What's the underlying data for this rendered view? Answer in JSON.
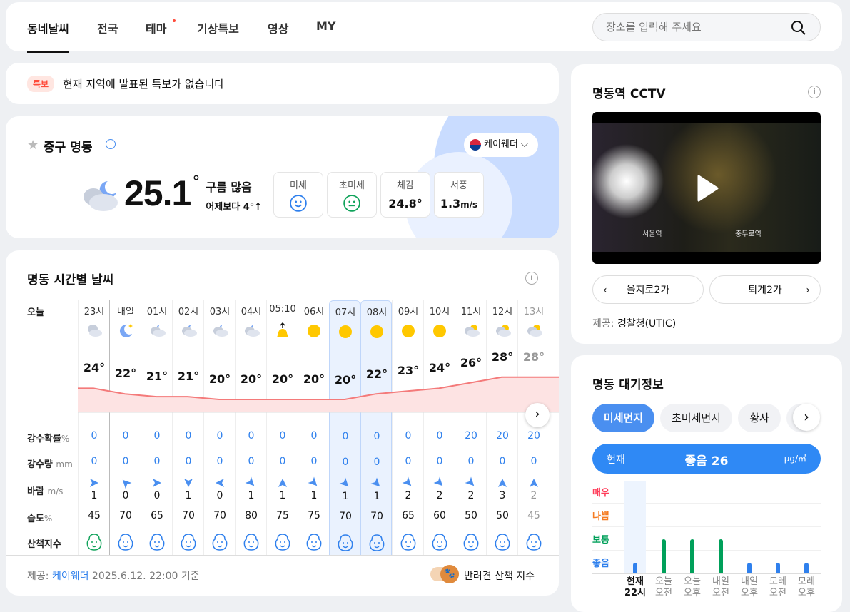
{
  "nav": {
    "tabs": [
      {
        "label": "동네날씨",
        "active": true
      },
      {
        "label": "전국"
      },
      {
        "label": "테마",
        "dot": true
      },
      {
        "label": "기상특보"
      },
      {
        "label": "영상"
      },
      {
        "label": "MY"
      }
    ],
    "search_placeholder": "장소를 입력해 주세요"
  },
  "alert": {
    "badge": "특보",
    "text": "현재 지역에 발표된 특보가 없습니다"
  },
  "current": {
    "location": "중구 명동",
    "provider": "케이웨더",
    "temp": "25.1",
    "unit": "°",
    "condition": "구름 많음",
    "compare": "어제보다 4°↑",
    "stats": [
      {
        "label": "미세",
        "icon": "smile-icon",
        "color": "#2f80ed"
      },
      {
        "label": "초미세",
        "icon": "neutral-face-icon",
        "color": "#11a35b"
      },
      {
        "label": "체감",
        "value": "24.8°"
      },
      {
        "label": "서풍",
        "value": "1.3",
        "unit": "m/s"
      }
    ]
  },
  "hourly": {
    "title": "명동 시간별 날씨",
    "day_label": "오늘",
    "row_labels": {
      "pop": "강수확률",
      "pop_unit": "%",
      "rain": "강수량",
      "rain_unit": "mm",
      "wind": "바람",
      "wind_unit": "m/s",
      "hum": "습도",
      "hum_unit": "%",
      "walk": "산책지수"
    },
    "hours": [
      "23시",
      "내일",
      "01시",
      "02시",
      "03시",
      "04시",
      "05:10",
      "06시",
      "07시",
      "08시",
      "09시",
      "10시",
      "11시",
      "12시",
      "13시"
    ],
    "icons": [
      "cloudy",
      "moon",
      "cloud-moon",
      "cloud-moon",
      "cloud-moon",
      "cloud-moon",
      "sunrise",
      "sun",
      "sun",
      "sun",
      "sun",
      "sun",
      "cloud-sun",
      "cloud-sun",
      "cloud-sun"
    ],
    "temps": [
      24,
      22,
      21,
      21,
      20,
      20,
      20,
      20,
      20,
      22,
      23,
      24,
      26,
      28,
      28
    ],
    "pop": [
      0,
      0,
      0,
      0,
      0,
      0,
      0,
      0,
      0,
      0,
      0,
      0,
      20,
      20,
      20
    ],
    "rain": [
      0,
      0,
      0,
      0,
      0,
      0,
      0,
      0,
      0,
      0,
      0,
      0,
      0,
      0,
      0
    ],
    "wind_dir_deg": [
      0,
      -135,
      0,
      90,
      180,
      45,
      -90,
      45,
      45,
      45,
      45,
      45,
      45,
      -90,
      -90
    ],
    "wind_speed": [
      1,
      0,
      0,
      1,
      0,
      1,
      1,
      1,
      1,
      1,
      2,
      2,
      2,
      3,
      2
    ],
    "humidity": [
      45,
      70,
      65,
      70,
      70,
      80,
      75,
      75,
      70,
      70,
      65,
      60,
      50,
      50,
      45
    ],
    "walk": [
      "good",
      "normal",
      "normal",
      "normal",
      "normal",
      "normal",
      "normal",
      "normal",
      "normal",
      "normal",
      "normal",
      "normal",
      "normal",
      "normal",
      "normal"
    ],
    "selected": [
      8,
      9
    ],
    "footer_prefix": "제공:",
    "footer_provider": "케이웨더",
    "footer_time": "2025.6.12. 22:00 기준",
    "toggle_label": "반려견 산책 지수"
  },
  "cctv": {
    "title": "명동역 CCTV",
    "prev": "을지로2가",
    "next": "퇴계2가",
    "credit_prefix": "제공:",
    "credit": "경찰청(UTIC)",
    "overlay_left": "서울역",
    "overlay_right": "충무로역"
  },
  "air": {
    "title": "명동 대기정보",
    "tabs": [
      "미세먼지",
      "초미세먼지",
      "황사"
    ],
    "now_label": "현재",
    "now_value": "좋음 26",
    "unit": "μg/㎥",
    "levels": [
      {
        "label": "매우",
        "color": "#ff3d5a"
      },
      {
        "label": "나쁨",
        "color": "#f57c22"
      },
      {
        "label": "보통",
        "color": "#00a05a"
      },
      {
        "label": "좋음",
        "color": "#2f80ed"
      }
    ],
    "forecast": [
      {
        "top": "현재",
        "bottom": "22시",
        "level": "좋음"
      },
      {
        "top": "오늘",
        "bottom": "오전",
        "level": "보통"
      },
      {
        "top": "오늘",
        "bottom": "오후",
        "level": "보통"
      },
      {
        "top": "내일",
        "bottom": "오전",
        "level": "보통"
      },
      {
        "top": "내일",
        "bottom": "오후",
        "level": "좋음"
      },
      {
        "top": "모레",
        "bottom": "오전",
        "level": "좋음"
      },
      {
        "top": "모레",
        "bottom": "오후",
        "level": "좋음"
      }
    ]
  },
  "colors": {
    "accent": "#2f80ed",
    "tab_active": "#4a8ff0",
    "temp_line": "#f47a7a"
  }
}
